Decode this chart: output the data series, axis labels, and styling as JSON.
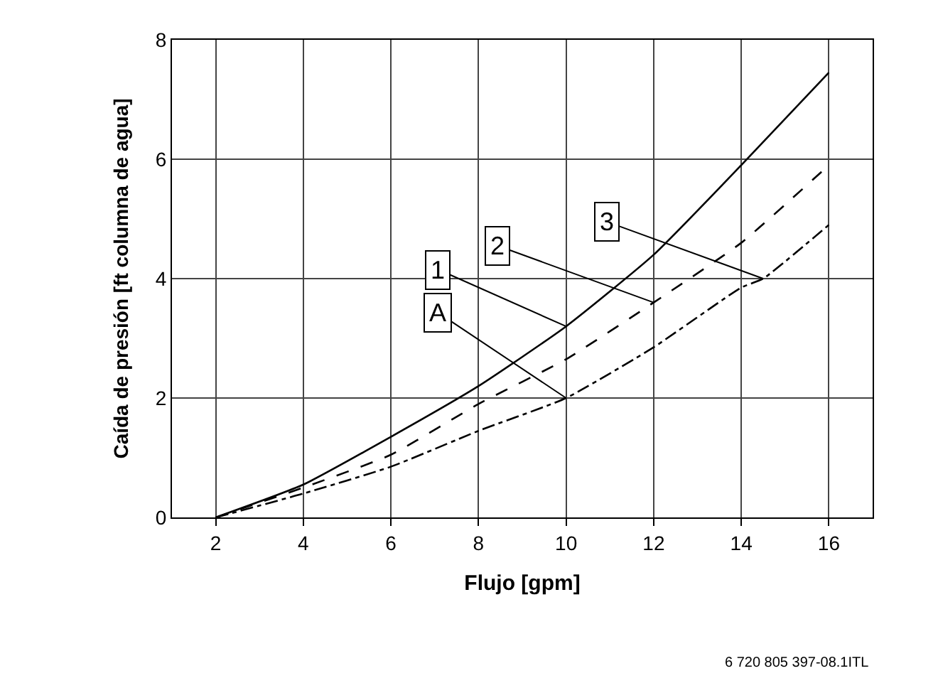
{
  "chart_data": {
    "type": "line",
    "xlabel": "Flujo [gpm]",
    "ylabel": "Caída de presión [ft columna de agua]",
    "series": [
      {
        "color": "#000000",
        "line_style": "solid",
        "x": [
          2,
          4,
          6,
          8,
          10,
          12,
          14,
          16
        ],
        "values": [
          0,
          0.55,
          1.35,
          2.2,
          3.2,
          4.4,
          5.9,
          7.45
        ]
      },
      {
        "color": "#000000",
        "line_style": "dashed",
        "x": [
          2,
          4,
          6,
          8,
          10,
          12,
          14,
          16
        ],
        "values": [
          0,
          0.5,
          1.05,
          1.9,
          2.65,
          3.6,
          4.6,
          5.9
        ]
      },
      {
        "color": "#000000",
        "line_style": "dashdot",
        "x": [
          2,
          4,
          6,
          8,
          10,
          12,
          14,
          14.5,
          16
        ],
        "values": [
          0,
          0.4,
          0.85,
          1.45,
          2.0,
          2.85,
          3.85,
          4.0,
          4.9
        ]
      }
    ],
    "xlim": [
      1,
      17
    ],
    "xticks": [
      2,
      4,
      6,
      8,
      10,
      12,
      14,
      16
    ],
    "ylim": [
      0,
      8
    ],
    "yticks": [
      0,
      2,
      4,
      6,
      8
    ],
    "grid": true,
    "annotations": [
      {
        "text": "1",
        "x": 10,
        "y": 3.2
      },
      {
        "text": "2",
        "x": 12,
        "y": 3.6
      },
      {
        "text": "3",
        "x": 14.5,
        "y": 4.0
      },
      {
        "text": "A",
        "x": 10,
        "y": 2.0
      },
      "6 720 805 397-08.1ITL"
    ]
  }
}
